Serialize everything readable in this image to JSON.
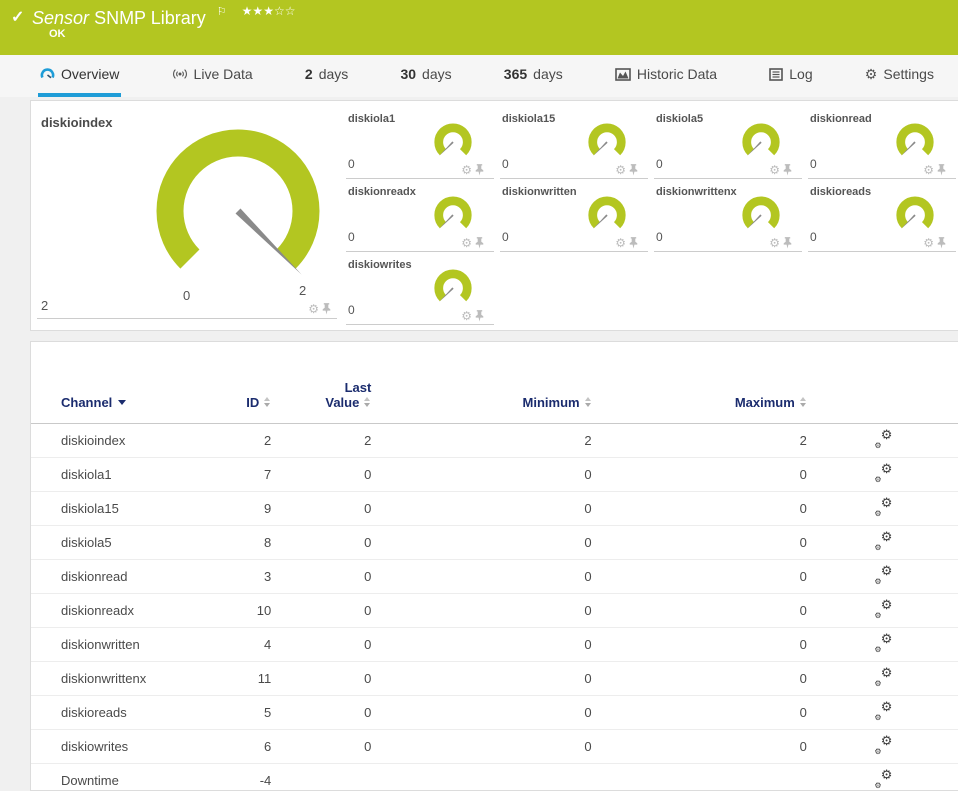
{
  "header": {
    "check": "✓",
    "title_italic": "Sensor",
    "title_rest": "SNMP Library",
    "flag": "⚐",
    "stars": "★★★☆☆",
    "status": "OK"
  },
  "tabs": [
    {
      "label": "Overview"
    },
    {
      "label": "Live Data"
    },
    {
      "num": "2",
      "label": "days"
    },
    {
      "num": "30",
      "label": "days"
    },
    {
      "num": "365",
      "label": "days"
    },
    {
      "label": "Historic Data"
    },
    {
      "label": "Log"
    },
    {
      "label": "Settings"
    }
  ],
  "colors": {
    "green": "#b3c621",
    "blue": "#1e9cd7",
    "navy": "#1b2c6e"
  },
  "gauges": {
    "main": {
      "name": "diskioindex",
      "display": "2",
      "min_label": "0",
      "max_label": "2",
      "value": 2,
      "min": 0,
      "max": 2
    },
    "small": [
      {
        "name": "diskiola1",
        "display": "0",
        "value": 0,
        "min": 0,
        "max": 2
      },
      {
        "name": "diskiola15",
        "display": "0",
        "value": 0,
        "min": 0,
        "max": 2
      },
      {
        "name": "diskiola5",
        "display": "0",
        "value": 0,
        "min": 0,
        "max": 2
      },
      {
        "name": "diskionread",
        "display": "0",
        "value": 0,
        "min": 0,
        "max": 2
      },
      {
        "name": "diskionreadx",
        "display": "0",
        "value": 0,
        "min": 0,
        "max": 2
      },
      {
        "name": "diskionwritten",
        "display": "0",
        "value": 0,
        "min": 0,
        "max": 2
      },
      {
        "name": "diskionwrittenx",
        "display": "0",
        "value": 0,
        "min": 0,
        "max": 2
      },
      {
        "name": "diskioreads",
        "display": "0",
        "value": 0,
        "min": 0,
        "max": 2
      },
      {
        "name": "diskiowrites",
        "display": "0",
        "value": 0,
        "min": 0,
        "max": 2
      }
    ]
  },
  "table": {
    "headers": {
      "channel": "Channel",
      "id": "ID",
      "last1": "Last",
      "last2": "Value",
      "min": "Minimum",
      "max": "Maximum"
    },
    "rows": [
      {
        "channel": "diskioindex",
        "id": "2",
        "last": "2",
        "min": "2",
        "max": "2"
      },
      {
        "channel": "diskiola1",
        "id": "7",
        "last": "0",
        "min": "0",
        "max": "0"
      },
      {
        "channel": "diskiola15",
        "id": "9",
        "last": "0",
        "min": "0",
        "max": "0"
      },
      {
        "channel": "diskiola5",
        "id": "8",
        "last": "0",
        "min": "0",
        "max": "0"
      },
      {
        "channel": "diskionread",
        "id": "3",
        "last": "0",
        "min": "0",
        "max": "0"
      },
      {
        "channel": "diskionreadx",
        "id": "10",
        "last": "0",
        "min": "0",
        "max": "0"
      },
      {
        "channel": "diskionwritten",
        "id": "4",
        "last": "0",
        "min": "0",
        "max": "0"
      },
      {
        "channel": "diskionwrittenx",
        "id": "11",
        "last": "0",
        "min": "0",
        "max": "0"
      },
      {
        "channel": "diskioreads",
        "id": "5",
        "last": "0",
        "min": "0",
        "max": "0"
      },
      {
        "channel": "diskiowrites",
        "id": "6",
        "last": "0",
        "min": "0",
        "max": "0"
      },
      {
        "channel": "Downtime",
        "id": "-4",
        "last": "",
        "min": "",
        "max": ""
      }
    ]
  }
}
